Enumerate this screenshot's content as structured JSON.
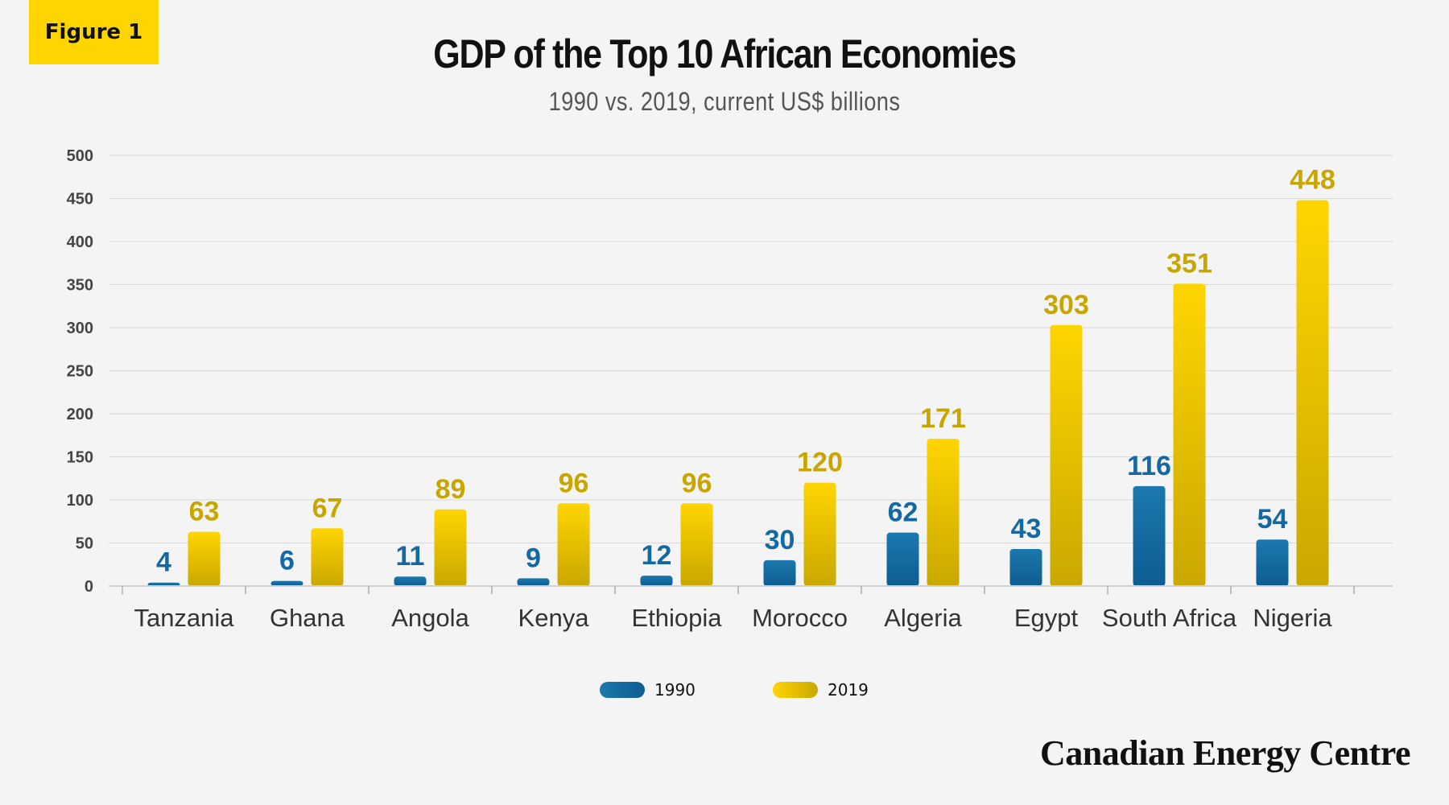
{
  "badge": "Figure 1",
  "brand": "Canadian Energy Centre",
  "colors": {
    "series_1990_top": "#1c78ad",
    "series_1990_bottom": "#0e5c92",
    "series_2019_top": "#ffd500",
    "series_2019_bottom": "#c9a800",
    "label_1990": "#1469a3",
    "label_2019": "#c9a500"
  },
  "chart_data": {
    "type": "bar",
    "title": "GDP of the Top 10 African Economies",
    "subtitle": "1990 vs. 2019, current US$ billions",
    "categories": [
      "Tanzania",
      "Ghana",
      "Angola",
      "Kenya",
      "Ethiopia",
      "Morocco",
      "Algeria",
      "Egypt",
      "South Africa",
      "Nigeria"
    ],
    "series": [
      {
        "name": "1990",
        "values": [
          4,
          6,
          11,
          9,
          12,
          30,
          62,
          43,
          116,
          54
        ]
      },
      {
        "name": "2019",
        "values": [
          63,
          67,
          89,
          96,
          96,
          120,
          171,
          303,
          351,
          448
        ]
      }
    ],
    "yticks": [
      0,
      50,
      100,
      150,
      200,
      250,
      300,
      350,
      400,
      450,
      500
    ],
    "ylim": [
      0,
      500
    ],
    "grid": true,
    "legend": "bottom-center"
  }
}
